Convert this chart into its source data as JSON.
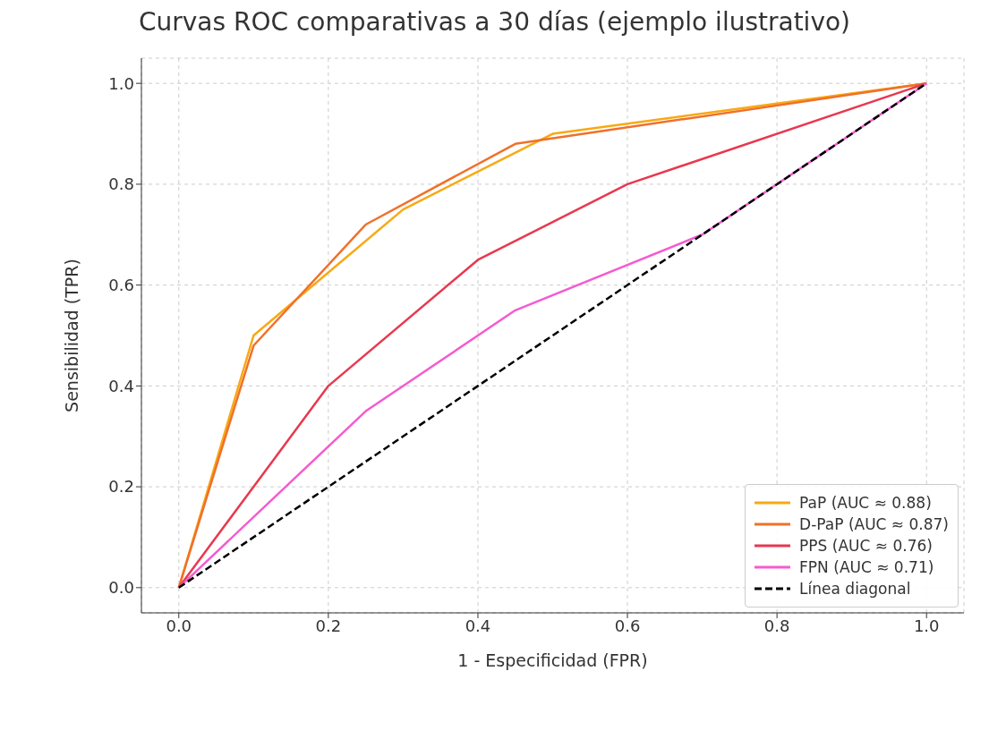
{
  "chart_data": {
    "type": "line",
    "title": "Curvas ROC comparativas a 30 días (ejemplo ilustrativo)",
    "xlabel": "1 - Especificidad (FPR)",
    "ylabel": "Sensibilidad (TPR)",
    "series": [
      {
        "name": "PaP (AUC ≈ 0.88)",
        "color": "#f8a912",
        "x": [
          0,
          0.1,
          0.3,
          0.5,
          1
        ],
        "values": [
          0,
          0.5,
          0.75,
          0.9,
          1
        ]
      },
      {
        "name": "D-PaP (AUC ≈ 0.87)",
        "color": "#f0702a",
        "x": [
          0,
          0.1,
          0.25,
          0.45,
          1
        ],
        "values": [
          0,
          0.48,
          0.72,
          0.88,
          1
        ]
      },
      {
        "name": "PPS (AUC ≈ 0.76)",
        "color": "#e8384f",
        "x": [
          0,
          0.2,
          0.4,
          0.6,
          1
        ],
        "values": [
          0,
          0.4,
          0.65,
          0.8,
          1
        ]
      },
      {
        "name": "FPN (AUC ≈ 0.71)",
        "color": "#f55ad0",
        "x": [
          0,
          0.25,
          0.45,
          0.7,
          1
        ],
        "values": [
          0,
          0.35,
          0.55,
          0.7,
          1
        ]
      },
      {
        "name": "Línea diagonal",
        "color": "#000000",
        "x": [
          0,
          1
        ],
        "values": [
          0,
          1
        ],
        "line_style": "dashed"
      }
    ],
    "xlim": [
      -0.05,
      1.05
    ],
    "ylim": [
      -0.05,
      1.05
    ],
    "xticks": [
      {
        "value": 0,
        "label": "0.0"
      },
      0.2,
      0.4,
      0.6,
      0.8,
      {
        "value": 1,
        "label": "1.0"
      }
    ],
    "yticks": [
      {
        "value": 0,
        "label": "0.0"
      },
      0.2,
      0.4,
      0.6,
      0.8,
      {
        "value": 1,
        "label": "1.0"
      }
    ],
    "grid": true,
    "legend": "bottom right",
    "marker": "none"
  }
}
